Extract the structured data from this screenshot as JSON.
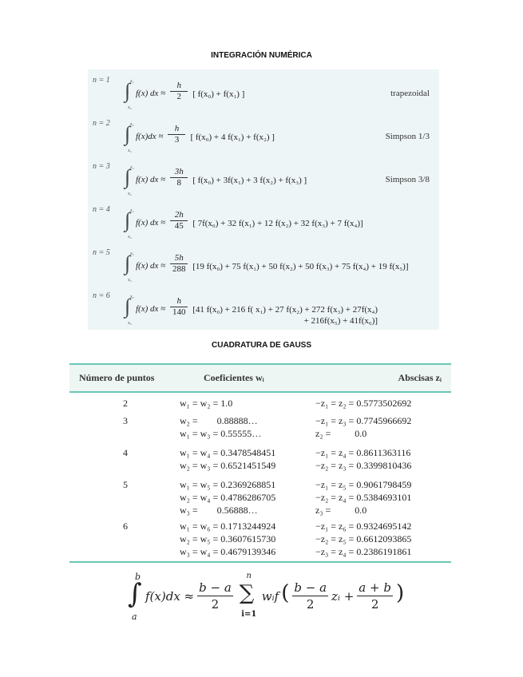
{
  "title1": "INTEGRACIÓN NUMÉRICA",
  "title2": "CUADRATURA DE GAUSS",
  "formulas": [
    {
      "n": "n = 1",
      "upper": "x₁",
      "lower": "x₀",
      "lhs": "f(x) dx ≈",
      "num": "h",
      "den": "2",
      "rhs": "[ f(x₀) + f(x₁) ]",
      "rhs2": "",
      "name": "trapezoidal"
    },
    {
      "n": "n = 2",
      "upper": "x₂",
      "lower": "x₀",
      "lhs": "f(x)dx ≈",
      "num": "h",
      "den": "3",
      "rhs": "[ f(x₀) + 4 f(x₁) + f(x₂) ]",
      "rhs2": "",
      "name": "Simpson 1/3"
    },
    {
      "n": "n = 3",
      "upper": "x₃",
      "lower": "x₀",
      "lhs": "f(x) dx ≈",
      "num": "3h",
      "den": "8",
      "rhs": "[ f(x₀) + 3f(x₁) + 3 f(x₂) + f(x₃) ]",
      "rhs2": "",
      "name": "Simpson 3/8"
    },
    {
      "n": "n = 4",
      "upper": "x₄",
      "lower": "x₀",
      "lhs": "f(x) dx ≈",
      "num": "2h",
      "den": "45",
      "rhs": "[ 7f(x₀) + 32 f(x₁) + 12 f(x₂) + 32 f(x₃) + 7 f(x₄)]",
      "rhs2": "",
      "name": ""
    },
    {
      "n": "n = 5",
      "upper": "x₅",
      "lower": "x₀",
      "lhs": "f(x) dx ≈",
      "num": "5h",
      "den": "288",
      "rhs": "[19 f(x₀) + 75 f(x₁) + 50 f(x₂) + 50 f(x₃) + 75 f(x₄) + 19 f(x₅)]",
      "rhs2": "",
      "name": ""
    },
    {
      "n": "n = 6",
      "upper": "x₆",
      "lower": "x₀",
      "lhs": "f(x) dx ≈",
      "num": "h",
      "den": "140",
      "rhs": "[41 f(x₀) + 216 f( x₁) + 27 f(x₂) + 272 f(x₃) + 27f(x₄)",
      "rhs2": "+ 216f(x₅) + 41f(x₆)]",
      "name": ""
    }
  ],
  "table": {
    "headers": [
      "Número de puntos",
      "Coeficientes wᵢ",
      "Abscisas zᵢ"
    ],
    "rows": [
      {
        "n": "2",
        "w": [
          "w₁ = w₂ = 1.0"
        ],
        "z": [
          "−z₁ = z₂ = 0.5773502692"
        ]
      },
      {
        "n": "3",
        "w": [
          "w₂ =        0.88888…",
          "w₁ = w₃ = 0.55555…"
        ],
        "z": [
          "−z₁ = z₃ = 0.7745966692",
          "z₂ =          0.0"
        ]
      },
      {
        "n": "4",
        "w": [
          "w₁ = w₄ = 0.3478548451",
          "w₂ = w₃ = 0.6521451549"
        ],
        "z": [
          "−z₁ = z₄ = 0.8611363116",
          "−z₂ = z₃ = 0.3399810436"
        ]
      },
      {
        "n": "5",
        "w": [
          "w₁ = w₅ = 0.2369268851",
          "w₂ = w₄ = 0.4786286705",
          "w₃ =        0.56888…"
        ],
        "z": [
          "−z₁ = z₅ = 0.9061798459",
          "−z₂ = z₄ = 0.5384693101",
          "z₃ =          0.0"
        ]
      },
      {
        "n": "6",
        "w": [
          "w₁ = w₆ = 0.1713244924",
          "w₂ = w₅ = 0.3607615730",
          "w₃ = w₄ = 0.4679139346"
        ],
        "z": [
          "−z₁ = z₆ = 0.9324695142",
          "−z₂ = z₅ = 0.6612093865",
          "−z₃ = z₄ = 0.2386191861"
        ]
      }
    ]
  },
  "gauss": {
    "upper": "b",
    "lower": "a",
    "integrand": "f(x)dx ≈",
    "frac1_num": "b − a",
    "frac1_den": "2",
    "sum_upper": "n",
    "sum_lower": "i=1",
    "term": "wᵢf",
    "frac2_num": "b − a",
    "frac2_den": "2",
    "zi": "zᵢ +",
    "frac3_num": "a + b",
    "frac3_den": "2"
  },
  "colors": {
    "box_bg": "#eef5f6",
    "table_rule": "#6cc6b6"
  }
}
